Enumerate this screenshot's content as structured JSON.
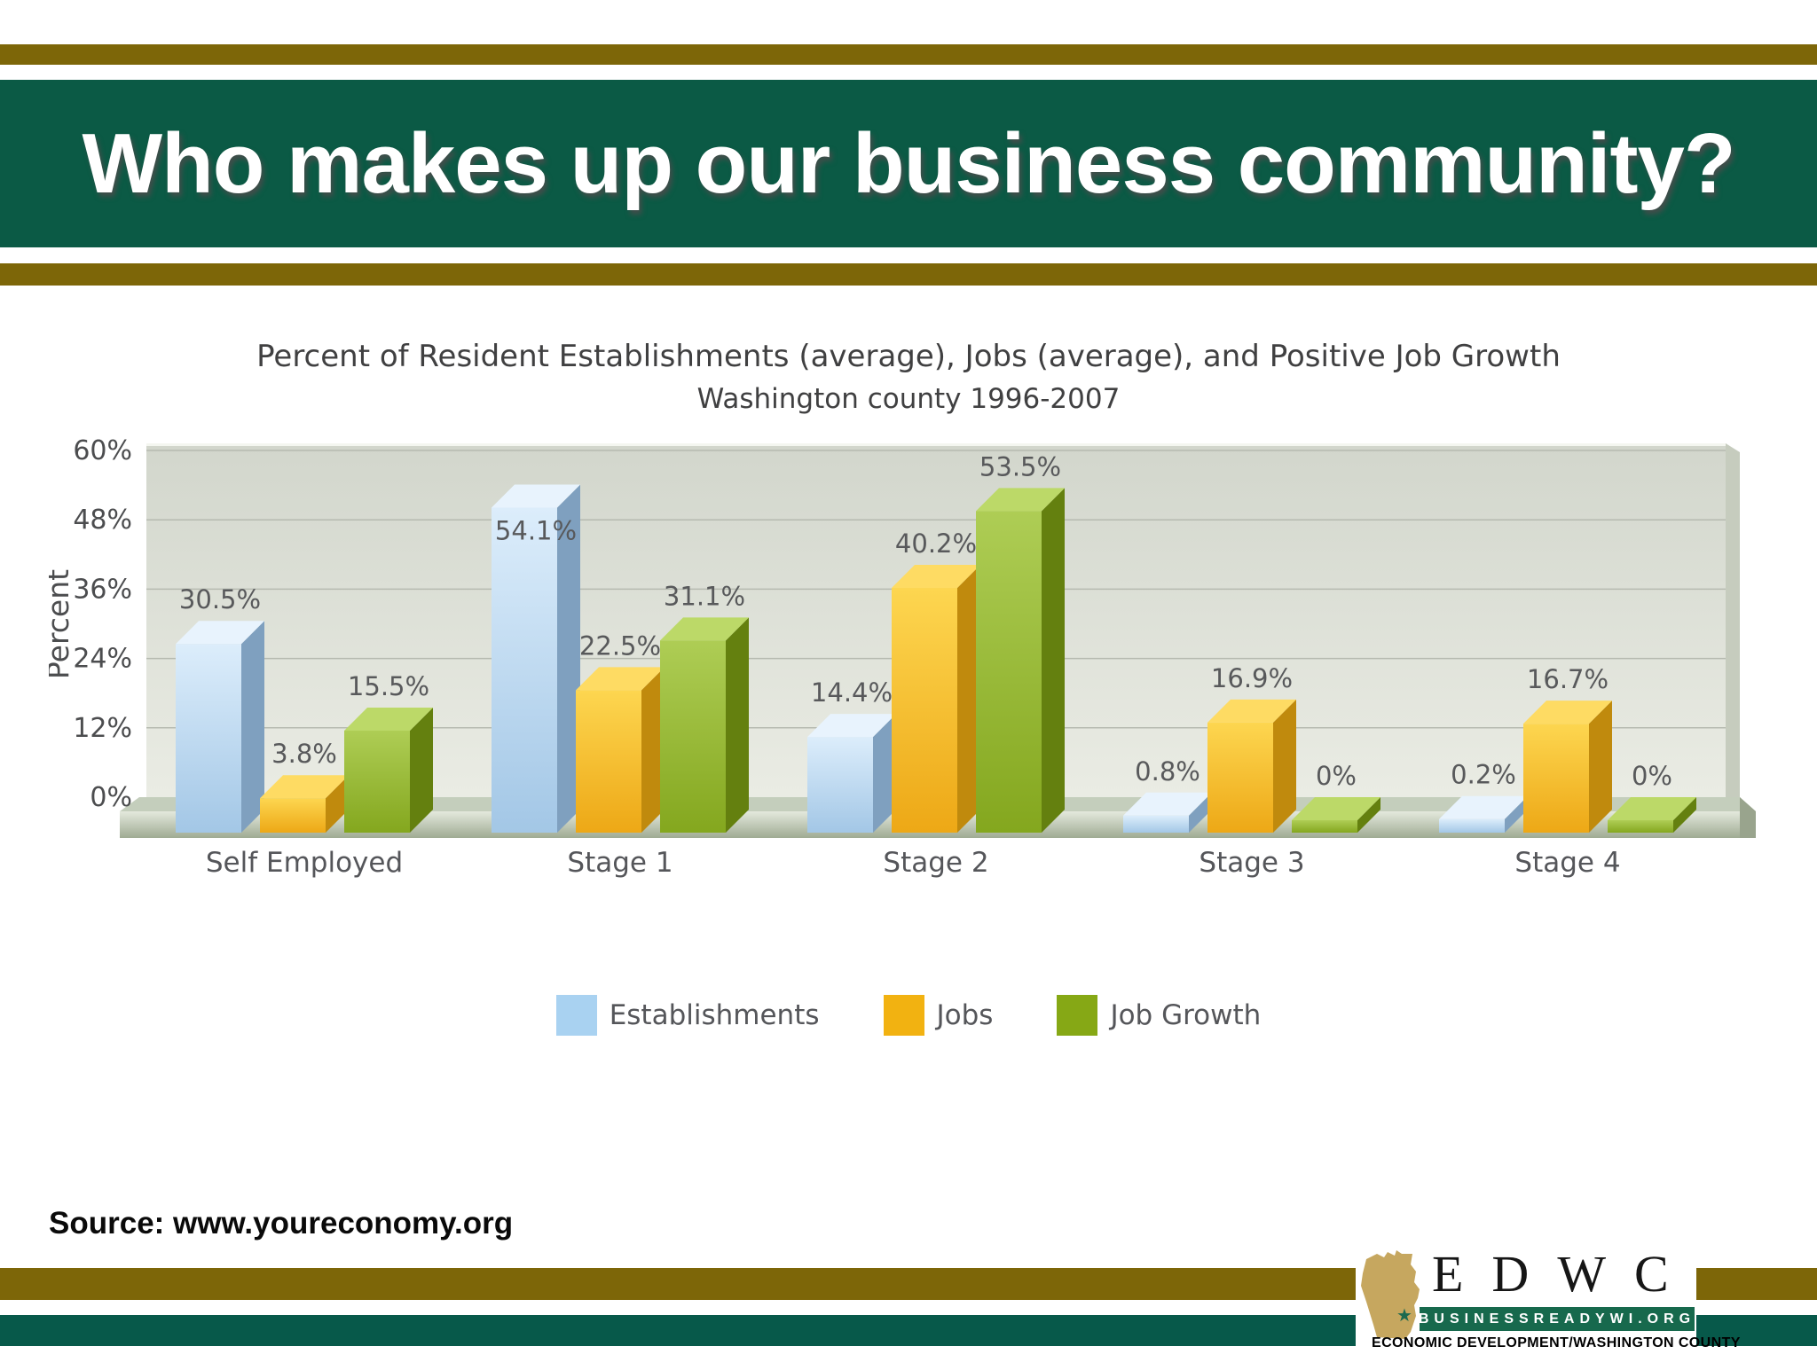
{
  "slide": {
    "title": "Who makes up our business community?",
    "source": "Source: www.youreconomy.org"
  },
  "logo": {
    "acronym": "EDWC",
    "banner": "BUSINESSREADYWI.ORG",
    "tagline": "ECONOMIC DEVELOPMENT/WASHINGTON COUNTY",
    "state_icon": "wisconsin-state-shape",
    "star_icon": "star"
  },
  "colors": {
    "stripe_gold": "#7d6608",
    "header_green": "#0b5a45",
    "bottom_green": "#07594a",
    "logo_banner_green": "#17694d",
    "wisconsin_tan": "#c6a75f",
    "star_green": "#1c6a4f",
    "chart_text": "#404041",
    "axis_text": "#4c4d4f",
    "value_label_text": "#58595b",
    "wall_fill_top": "#d2d6cc",
    "wall_fill_bottom": "#eaece4",
    "wall_side": "#c6ccbe",
    "gridline": "#b6bab0",
    "floor_top": "#c4cebc",
    "floor_front_top": "#e4e9dd",
    "floor_front_bottom": "#9fab93",
    "floor_cap": "#99a48d"
  },
  "chart_data": {
    "type": "bar",
    "variant": "3d-column",
    "title": "Percent of Resident Establishments (average), Jobs (average), and Positive Job Growth",
    "subtitle": "Washington county 1996-2007",
    "ylabel": "Percent",
    "categories": [
      "Self Employed",
      "Stage 1",
      "Stage 2",
      "Stage 3",
      "Stage 4"
    ],
    "series": [
      {
        "name": "Establishments",
        "values": [
          30.5,
          54.1,
          14.4,
          0.8,
          0.2
        ],
        "labels": [
          "30.5%",
          "54.1%",
          "14.4%",
          "0.8%",
          "0.2%"
        ],
        "legend": "#a9d2f1",
        "front": [
          "#dcedfb",
          "#a3c7e6"
        ],
        "side": "#7fa0bf",
        "top": "#e8f3fd"
      },
      {
        "name": "Jobs",
        "values": [
          3.8,
          22.5,
          40.2,
          16.9,
          16.7
        ],
        "labels": [
          "3.8%",
          "22.5%",
          "40.2%",
          "16.9%",
          "16.7%"
        ],
        "legend": "#f2b211",
        "front": [
          "#fdd650",
          "#eda816"
        ],
        "side": "#c08a0d",
        "top": "#fedb63"
      },
      {
        "name": "Job Growth",
        "values": [
          15.5,
          31.1,
          53.5,
          0,
          0
        ],
        "labels": [
          "15.5%",
          "31.1%",
          "53.5%",
          "0%",
          "0%"
        ],
        "legend": "#86a815",
        "front": [
          "#aecd55",
          "#84a71e"
        ],
        "side": "#64800f",
        "top": "#bcd968"
      }
    ],
    "ylim": [
      0,
      60
    ],
    "ytick_values": [
      0,
      12,
      24,
      36,
      48,
      60
    ],
    "yticks": [
      "0%",
      "12%",
      "24%",
      "36%",
      "48%",
      "60%"
    ],
    "grid": true,
    "legend_position": "bottom"
  }
}
